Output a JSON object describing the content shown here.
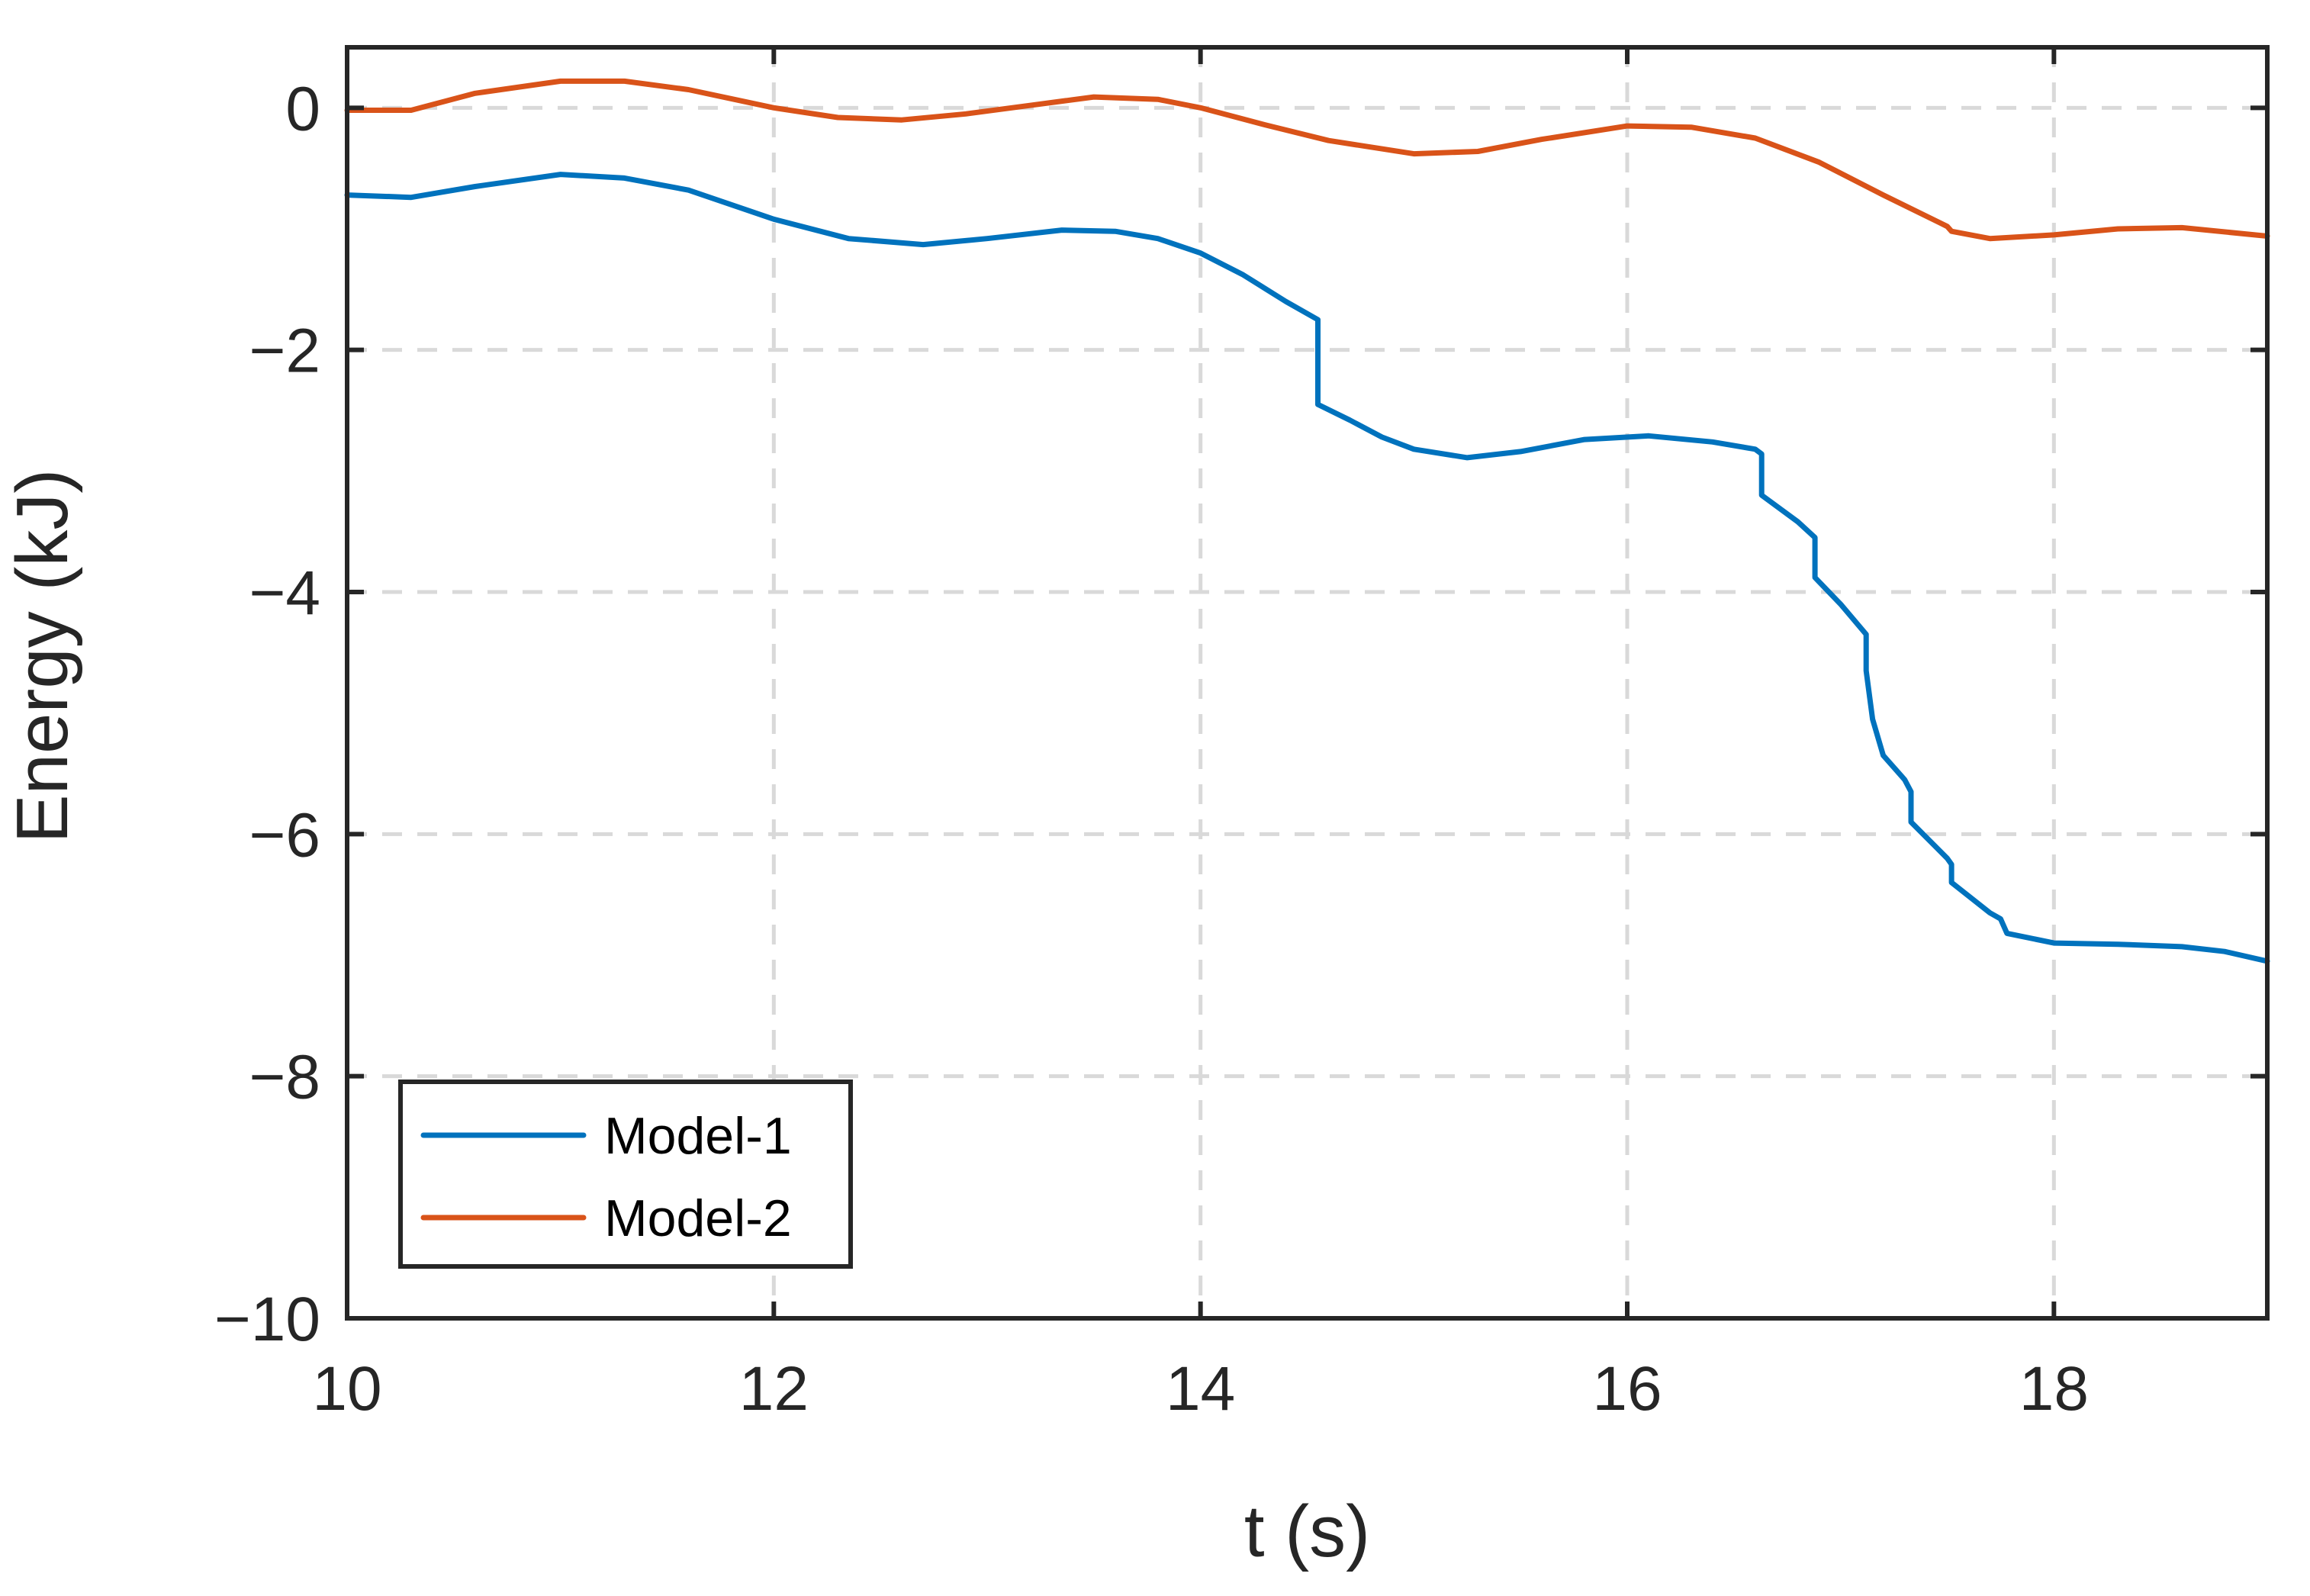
{
  "chart_data": {
    "type": "line",
    "title": "",
    "xlabel": "t (s)",
    "ylabel": "Energy (kJ)",
    "xlim": [
      10,
      19
    ],
    "ylim": [
      -10,
      0.5
    ],
    "xticks": [
      10,
      12,
      14,
      16,
      18
    ],
    "xtick_labels": [
      "10",
      "12",
      "14",
      "16",
      "18"
    ],
    "yticks": [
      0,
      -2,
      -4,
      -6,
      -8,
      -10
    ],
    "ytick_labels": [
      "0",
      "−2",
      "−4",
      "−6",
      "−8",
      "−10"
    ],
    "grid": true,
    "legend_position": "bottom-left",
    "series": [
      {
        "name": "Model-1",
        "color": "#0072BD",
        "x": [
          10.0,
          10.3,
          10.6,
          11.0,
          11.3,
          11.6,
          12.0,
          12.35,
          12.7,
          13.0,
          13.35,
          13.6,
          13.8,
          14.0,
          14.2,
          14.4,
          14.55,
          14.55,
          14.7,
          14.85,
          15.0,
          15.25,
          15.5,
          15.8,
          16.1,
          16.4,
          16.6,
          16.63,
          16.63,
          16.8,
          16.88,
          16.88,
          17.0,
          17.12,
          17.12,
          17.15,
          17.2,
          17.3,
          17.33,
          17.33,
          17.5,
          17.52,
          17.52,
          17.7,
          17.75,
          17.78,
          18.0,
          18.3,
          18.6,
          18.8,
          19.0
        ],
        "y": [
          -0.72,
          -0.74,
          -0.65,
          -0.55,
          -0.58,
          -0.68,
          -0.92,
          -1.08,
          -1.13,
          -1.08,
          -1.01,
          -1.02,
          -1.08,
          -1.2,
          -1.38,
          -1.6,
          -1.75,
          -2.45,
          -2.58,
          -2.72,
          -2.82,
          -2.89,
          -2.84,
          -2.74,
          -2.71,
          -2.76,
          -2.82,
          -2.86,
          -3.2,
          -3.42,
          -3.55,
          -3.88,
          -4.1,
          -4.35,
          -4.65,
          -5.05,
          -5.35,
          -5.55,
          -5.65,
          -5.9,
          -6.2,
          -6.25,
          -6.4,
          -6.65,
          -6.7,
          -6.82,
          -6.9,
          -6.91,
          -6.93,
          -6.97,
          -7.05
        ]
      },
      {
        "name": "Model-2",
        "color": "#D95319",
        "x": [
          10.0,
          10.3,
          10.6,
          11.0,
          11.3,
          11.6,
          12.0,
          12.3,
          12.6,
          12.9,
          13.2,
          13.5,
          13.8,
          14.0,
          14.3,
          14.6,
          15.0,
          15.3,
          15.6,
          16.0,
          16.3,
          16.6,
          16.9,
          17.2,
          17.5,
          17.52,
          17.7,
          18.0,
          18.3,
          18.6,
          19.0
        ],
        "y": [
          -0.02,
          -0.02,
          0.12,
          0.22,
          0.22,
          0.15,
          0.0,
          -0.08,
          -0.1,
          -0.05,
          0.02,
          0.09,
          0.07,
          0.0,
          -0.14,
          -0.27,
          -0.38,
          -0.36,
          -0.26,
          -0.15,
          -0.16,
          -0.25,
          -0.45,
          -0.72,
          -0.98,
          -1.02,
          -1.08,
          -1.05,
          -1.0,
          -0.99,
          -1.06
        ]
      }
    ]
  }
}
